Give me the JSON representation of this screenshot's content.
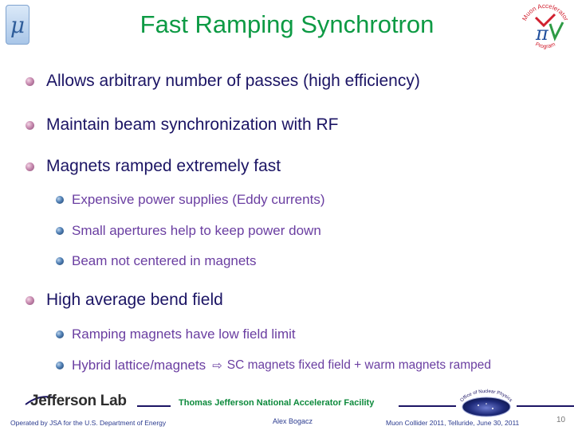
{
  "header": {
    "logo_glyph": "μ",
    "title": "Fast Ramping Synchrotron",
    "program_logo": {
      "top_text": "Muon Accelerator",
      "bottom_text": "Program",
      "glyph": "π",
      "colors": {
        "arc": "#d1202f",
        "mu": "#1f4e9c",
        "nu": "#2e9b45"
      }
    }
  },
  "bullets": [
    {
      "level": 1,
      "text": "Allows arbitrary number of passes (high efficiency)"
    },
    {
      "level": 1,
      "text": "Maintain beam synchronization  with RF"
    },
    {
      "level": 1,
      "text": "Magnets ramped extremely fast"
    },
    {
      "level": 2,
      "text": "Expensive power supplies (Eddy currents)"
    },
    {
      "level": 2,
      "text": "Small apertures help to keep power down"
    },
    {
      "level": 2,
      "text": "Beam not centered in magnets"
    },
    {
      "level": 1,
      "text": "High average bend field"
    },
    {
      "level": 2,
      "text": "Ramping magnets have low field limit"
    },
    {
      "level": 2,
      "text": "Hybrid lattice/magnets",
      "arrow": "⇨",
      "tail": "SC magnets fixed field + warm magnets ramped"
    }
  ],
  "footer": {
    "lab_name": "Jefferson Lab",
    "facility": "Thomas Jefferson National Accelerator Facility",
    "onp_logo_text": "Office of Nuclear Physics",
    "operated_by": "Operated by JSA for the U.S. Department of Energy",
    "author": "Alex Bogacz",
    "event": "Muon Collider 2011, Telluride, June 30, 2011",
    "page_number": "10"
  },
  "colors": {
    "title": "#0d9a44",
    "level1_text": "#1b1464",
    "level2_text": "#6a3ea1",
    "footer_text": "#2b3b8f",
    "facility_text": "#0d8a3c"
  }
}
